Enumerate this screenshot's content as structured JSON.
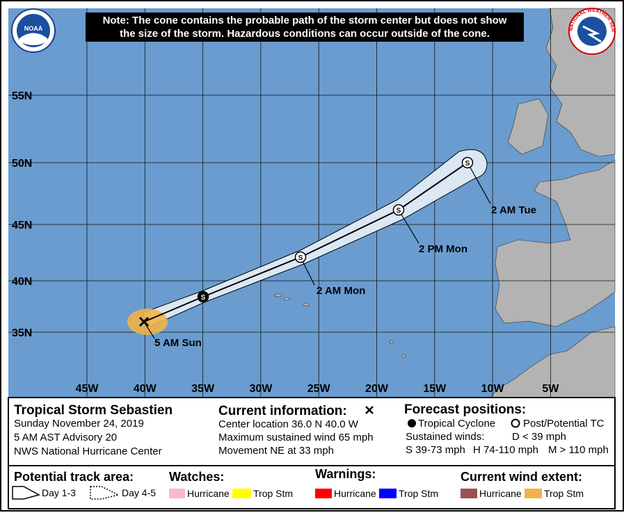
{
  "note_lines": [
    "Note: The cone contains the probable path of the storm center but does not show",
    "the size of the storm. Hazardous conditions can occur outside of the cone."
  ],
  "logos": {
    "noaa": "NOAA",
    "nws": "NATIONAL WEATHER SERVICE"
  },
  "map": {
    "lat_labels": [
      "55N",
      "50N",
      "45N",
      "40N",
      "35N"
    ],
    "lon_labels": [
      "45W",
      "40W",
      "35W",
      "30W",
      "25W",
      "20W",
      "15W",
      "10W",
      "5W"
    ],
    "current_label": "5 AM Sun",
    "points": [
      {
        "symbol": "S"
      },
      {
        "symbol": "S",
        "label": "2 AM Mon"
      },
      {
        "symbol": "S",
        "label": "2 PM Mon"
      },
      {
        "symbol": "S",
        "label": "2 AM Tue"
      }
    ]
  },
  "info": {
    "title": "Tropical Storm Sebastien",
    "date": "Sunday November 24, 2019",
    "advisory": "5 AM AST Advisory 20",
    "center": "NWS National Hurricane Center"
  },
  "current": {
    "heading": "Current information:",
    "lines": [
      "Center location 36.0 N 40.0 W",
      "Maximum sustained wind 65 mph",
      "Movement NE at 33 mph"
    ]
  },
  "forecast": {
    "heading": "Forecast positions:",
    "tropical": "Tropical Cyclone",
    "post": "Post/Potential TC",
    "sustained": "Sustained winds:",
    "d": "D < 39 mph",
    "s": "S 39-73 mph",
    "h": "H 74-110 mph",
    "m": "M > 110 mph"
  },
  "legend": {
    "track_area": "Potential track area:",
    "day13": "Day 1-3",
    "day45": "Day 4-5",
    "watches": "Watches:",
    "watch_items": [
      "Hurricane",
      "Trop Stm"
    ],
    "warnings": "Warnings:",
    "warning_items": [
      "Hurricane",
      "Trop Stm"
    ],
    "wind": "Current wind extent:",
    "wind_items": [
      "Hurricane",
      "Trop Stm"
    ]
  }
}
